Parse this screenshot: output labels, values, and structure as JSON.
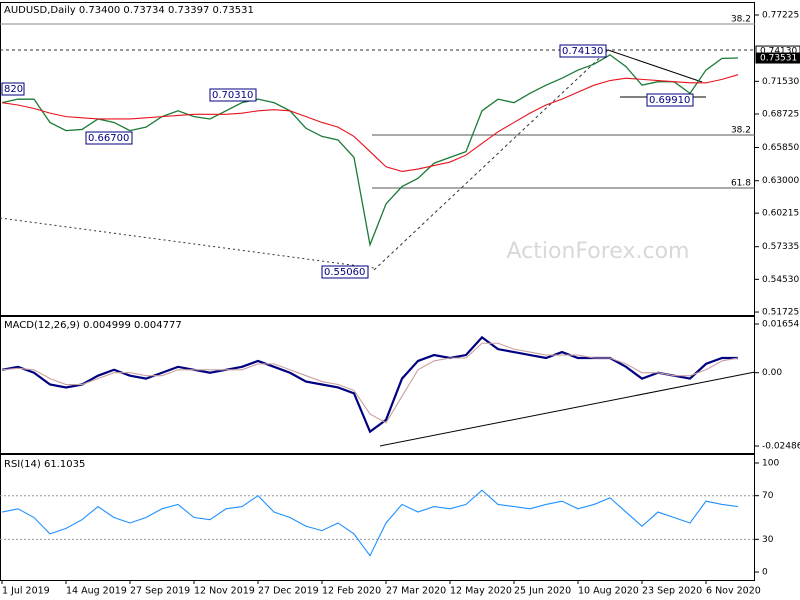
{
  "chart_data": [
    {
      "type": "line",
      "title": "AUDUSD,Daily  0.73400 0.73734 0.73397 0.73531",
      "watermark": "ActionForex.com",
      "categories": [
        "1 Jul 2019",
        null,
        null,
        null,
        "14 Aug 2019",
        null,
        null,
        null,
        "27 Sep 2019",
        null,
        null,
        null,
        "12 Nov 2019",
        null,
        null,
        null,
        "27 Dec 2019",
        null,
        null,
        null,
        "12 Feb 2020",
        null,
        null,
        null,
        "27 Mar 2020",
        null,
        null,
        null,
        "12 May 2020",
        null,
        null,
        null,
        "25 Jun 2020",
        null,
        null,
        null,
        "10 Aug 2020",
        null,
        null,
        null,
        "23 Sep 2020",
        null,
        null,
        null,
        "6 Nov 2020",
        null,
        null
      ],
      "series": [
        {
          "color": "#1b7a36",
          "values": [
            0.697,
            0.7,
            0.7,
            0.68,
            0.673,
            0.674,
            0.683,
            0.68,
            0.673,
            0.676,
            0.685,
            0.69,
            0.685,
            0.683,
            0.69,
            0.697,
            0.7,
            0.697,
            0.69,
            0.675,
            0.668,
            0.665,
            0.65,
            0.575,
            0.61,
            0.625,
            0.632,
            0.645,
            0.65,
            0.655,
            0.69,
            0.7,
            0.697,
            0.705,
            0.712,
            0.718,
            0.725,
            0.73,
            0.738,
            0.728,
            0.712,
            0.715,
            0.715,
            0.705,
            0.725,
            0.735,
            0.73531
          ]
        },
        {
          "color": "#e8121b",
          "values": [
            0.697,
            0.695,
            0.692,
            0.688,
            0.685,
            0.684,
            0.683,
            0.683,
            0.683,
            0.684,
            0.685,
            0.686,
            0.687,
            0.687,
            0.687,
            0.688,
            0.69,
            0.691,
            0.69,
            0.685,
            0.68,
            0.676,
            0.668,
            0.655,
            0.642,
            0.638,
            0.64,
            0.643,
            0.646,
            0.652,
            0.662,
            0.672,
            0.68,
            0.688,
            0.695,
            0.7,
            0.706,
            0.712,
            0.716,
            0.718,
            0.717,
            0.716,
            0.715,
            0.714,
            0.714,
            0.717,
            0.721
          ]
        }
      ],
      "ylim": [
        0.5147,
        0.7817
      ],
      "yticks": [
        0.77225,
        {
          "value": 0.7153,
          "label": "0.71530"
        },
        0.68725,
        {
          "value": 0.6585,
          "label": "0.65850"
        },
        {
          "value": 0.63,
          "label": "0.63000"
        },
        0.60215,
        0.57335,
        {
          "value": 0.5453,
          "label": "0.54530"
        },
        0.51725
      ],
      "price_tags": [
        {
          "value": 0.7413,
          "label": "0.74130"
        },
        0.73531
      ],
      "annotations": [
        "0.74130",
        "0.70310",
        "0.66700",
        "0.55060",
        "0.69910",
        "820"
      ],
      "levels": [
        "38.2",
        "38.2",
        "61.8"
      ]
    },
    {
      "type": "line",
      "title": "MACD(12,26,9) 0.004999 0.004777",
      "series": [
        {
          "color": "#000080",
          "values": [
            0.001,
            0.002,
            0.0,
            -0.004,
            -0.005,
            -0.004,
            -0.001,
            0.001,
            -0.001,
            -0.002,
            0.0,
            0.002,
            0.001,
            0.0,
            0.001,
            0.002,
            0.004,
            0.002,
            0.0,
            -0.003,
            -0.004,
            -0.005,
            -0.007,
            -0.02,
            -0.016,
            -0.002,
            0.004,
            0.006,
            0.005,
            0.006,
            0.012,
            0.008,
            0.007,
            0.006,
            0.005,
            0.007,
            0.005,
            0.005,
            0.005,
            0.002,
            -0.002,
            0.0,
            -0.001,
            -0.002,
            0.003,
            0.005,
            0.005
          ]
        },
        {
          "color": "#c9a0a0",
          "values": [
            0.001,
            0.0015,
            0.001,
            -0.002,
            -0.004,
            -0.004,
            -0.002,
            0.0,
            0.0,
            -0.001,
            -0.001,
            0.001,
            0.001,
            0.001,
            0.001,
            0.001,
            0.003,
            0.003,
            0.001,
            -0.001,
            -0.003,
            -0.004,
            -0.006,
            -0.014,
            -0.017,
            -0.008,
            0.001,
            0.004,
            0.005,
            0.005,
            0.01,
            0.01,
            0.008,
            0.007,
            0.006,
            0.006,
            0.006,
            0.005,
            0.005,
            0.003,
            0.0,
            0.0,
            -0.001,
            -0.001,
            0.001,
            0.004,
            0.005
          ]
        }
      ],
      "ylim": [
        -0.0269,
        0.01857
      ],
      "yticks": [
        0.01654,
        {
          "value": 0,
          "label": "0.00"
        },
        -0.02486
      ]
    },
    {
      "type": "line",
      "title": "RSI(14) 61.1035",
      "series": [
        {
          "color": "#1e90ff",
          "values": [
            55,
            58,
            50,
            35,
            40,
            48,
            60,
            50,
            45,
            50,
            58,
            62,
            50,
            48,
            58,
            60,
            70,
            55,
            50,
            42,
            38,
            45,
            35,
            15,
            45,
            62,
            55,
            60,
            58,
            62,
            75,
            62,
            60,
            58,
            62,
            65,
            58,
            62,
            68,
            55,
            42,
            55,
            50,
            45,
            65,
            62,
            60
          ]
        }
      ],
      "ylim": [
        -7.3,
        106.4
      ],
      "yticks": [
        100,
        70,
        30,
        0
      ]
    }
  ]
}
